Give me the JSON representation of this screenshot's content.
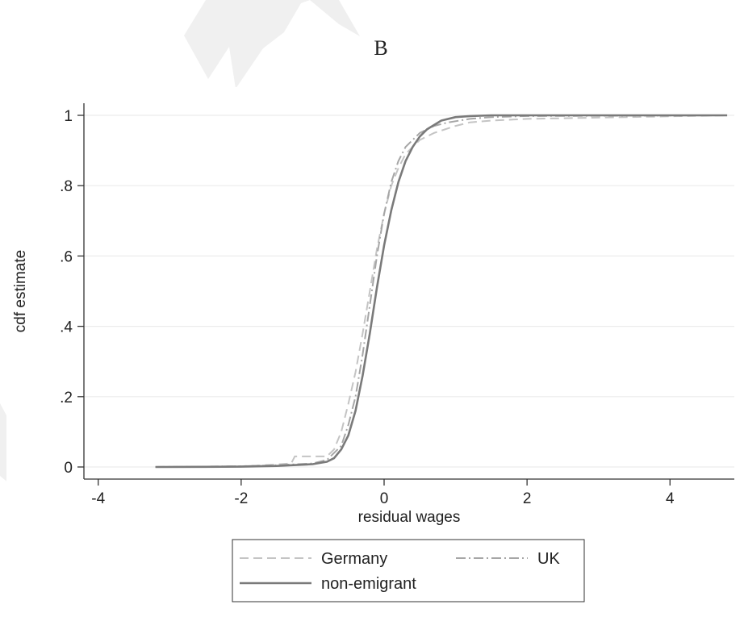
{
  "panel_label": "B",
  "chart_data": {
    "type": "line",
    "title": "",
    "xlabel": "residual wages",
    "ylabel": "cdf estimate",
    "xlim": [
      -4.2,
      4.9
    ],
    "ylim": [
      0,
      1
    ],
    "xticks": [
      -4,
      -2,
      0,
      2,
      4
    ],
    "xtick_labels": [
      "-4",
      "-2",
      "0",
      "2",
      "4"
    ],
    "yticks": [
      0,
      0.2,
      0.4,
      0.6,
      0.8,
      1
    ],
    "ytick_labels": [
      "0",
      ".2",
      ".4",
      ".6",
      ".8",
      "1"
    ],
    "grid": "horizontal",
    "legend": "bottom",
    "colors": {
      "Germany": "#c4c4c4",
      "UK": "#a6a6a6",
      "non-emigrant": "#7a7a7a",
      "grid": "#ececec",
      "axis": "#333333"
    },
    "series": [
      {
        "name": "Germany",
        "style": "dashed",
        "x": [
          -3.2,
          -2.0,
          -1.6,
          -1.3,
          -1.25,
          -0.8,
          -0.7,
          -0.6,
          -0.5,
          -0.4,
          -0.3,
          -0.2,
          -0.1,
          0.0,
          0.1,
          0.2,
          0.3,
          0.4,
          0.5,
          0.7,
          1.0,
          1.2,
          1.5,
          2.0,
          4.8
        ],
        "y": [
          0,
          0.002,
          0.006,
          0.01,
          0.03,
          0.03,
          0.05,
          0.1,
          0.18,
          0.27,
          0.38,
          0.5,
          0.62,
          0.72,
          0.8,
          0.85,
          0.89,
          0.91,
          0.93,
          0.95,
          0.97,
          0.98,
          0.985,
          0.99,
          1.0
        ]
      },
      {
        "name": "UK",
        "style": "dash-dot",
        "x": [
          -3.2,
          -2.0,
          -1.5,
          -1.0,
          -0.8,
          -0.6,
          -0.5,
          -0.4,
          -0.3,
          -0.2,
          -0.1,
          0.0,
          0.1,
          0.2,
          0.3,
          0.4,
          0.5,
          0.7,
          0.9,
          1.2,
          1.5,
          2.0,
          4.8
        ],
        "y": [
          0,
          0.002,
          0.005,
          0.01,
          0.02,
          0.06,
          0.12,
          0.2,
          0.32,
          0.46,
          0.6,
          0.72,
          0.81,
          0.87,
          0.91,
          0.93,
          0.95,
          0.97,
          0.98,
          0.99,
          0.995,
          0.998,
          1.0
        ]
      },
      {
        "name": "non-emigrant",
        "style": "solid",
        "x": [
          -3.2,
          -2.0,
          -1.5,
          -1.0,
          -0.8,
          -0.7,
          -0.6,
          -0.5,
          -0.4,
          -0.3,
          -0.2,
          -0.1,
          0.0,
          0.1,
          0.2,
          0.3,
          0.4,
          0.5,
          0.6,
          0.8,
          1.0,
          1.2,
          1.5,
          2.0,
          4.8
        ],
        "y": [
          0,
          0.001,
          0.003,
          0.008,
          0.015,
          0.025,
          0.05,
          0.09,
          0.16,
          0.26,
          0.38,
          0.51,
          0.63,
          0.73,
          0.81,
          0.87,
          0.91,
          0.94,
          0.96,
          0.985,
          0.995,
          0.998,
          1.0,
          1.0,
          1.0
        ]
      }
    ]
  }
}
